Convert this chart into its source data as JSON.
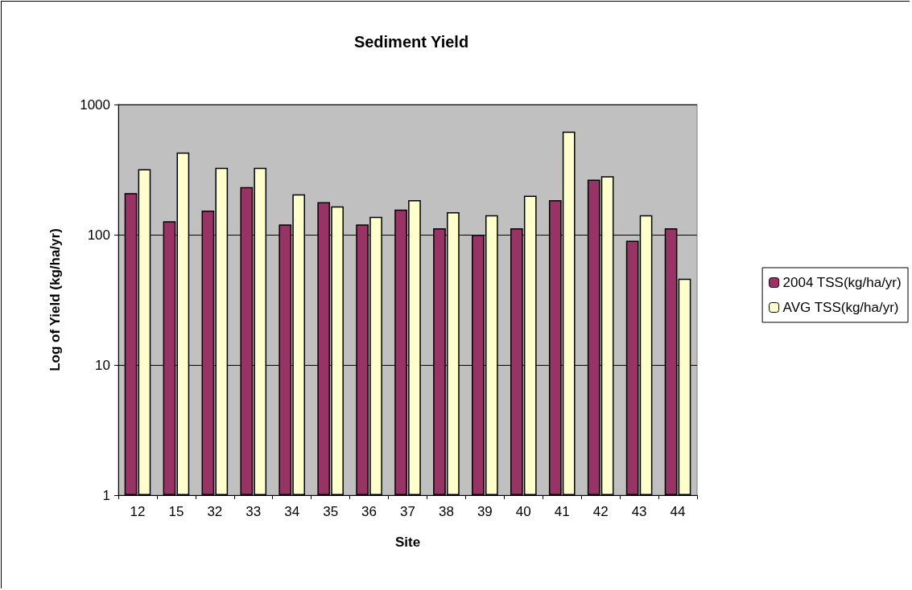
{
  "chart_data": {
    "type": "bar",
    "title": "Sediment Yield",
    "xlabel": "Site",
    "ylabel": "Log of Yield (kg/ha/yr)",
    "categories": [
      "12",
      "15",
      "32",
      "33",
      "34",
      "35",
      "36",
      "37",
      "38",
      "39",
      "40",
      "41",
      "42",
      "43",
      "44"
    ],
    "series": [
      {
        "name": "2004 TSS(kg/ha/yr)",
        "color": "#993366",
        "values": [
          209,
          127,
          153,
          232,
          120,
          178,
          120,
          156,
          112,
          100,
          112,
          184,
          265,
          90,
          112
        ]
      },
      {
        "name": "AVG TSS(kg/ha/yr)",
        "color": "#ffffcc",
        "values": [
          319,
          427,
          327,
          327,
          204,
          165,
          137,
          184,
          149,
          141,
          199,
          619,
          281,
          141,
          46
        ]
      }
    ],
    "log": "y",
    "ylim": [
      1,
      1000
    ],
    "yticks": [
      1,
      10,
      100,
      1000
    ],
    "grid": "y",
    "legend": "right"
  }
}
